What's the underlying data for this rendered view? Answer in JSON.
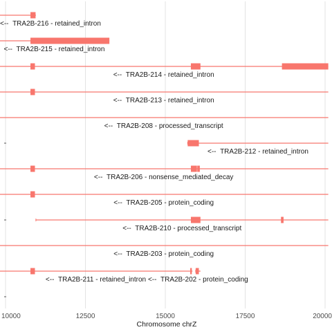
{
  "chart_data": {
    "type": "gene_track",
    "title": "",
    "xlabel": "Chromosome chrZ",
    "ylabel": "",
    "xlim": [
      10000,
      20000
    ],
    "x_ticks": [
      10000,
      12500,
      15000,
      17500,
      20000
    ],
    "x_tick_labels": [
      "10000",
      "12500",
      "15000",
      "17500",
      "20000"
    ],
    "grid": true,
    "color": "#F8766D",
    "transcripts": [
      {
        "label": "TRA2B-216 - retained_intron",
        "strand": "-",
        "row": 0,
        "line": [
          9800,
          10950
        ],
        "exons": [
          [
            10780,
            10940
          ]
        ]
      },
      {
        "label": "TRA2B-215 - retained_intron",
        "strand": "-",
        "row": 1,
        "line": [
          9800,
          13250
        ],
        "exons": [
          [
            10780,
            13250
          ]
        ]
      },
      {
        "label": "TRA2B-214 - retained_intron",
        "strand": "-",
        "row": 2,
        "line": [
          9800,
          20100
        ],
        "exons": [
          [
            10780,
            10920
          ],
          [
            15800,
            16100
          ],
          [
            18650,
            20100
          ]
        ]
      },
      {
        "label": "TRA2B-213 - retained_intron",
        "strand": "-",
        "row": 3,
        "line": [
          9800,
          20100
        ],
        "exons": [
          [
            10780,
            10920
          ]
        ]
      },
      {
        "label": "TRA2B-208 - processed_transcript",
        "strand": "-",
        "row": 4,
        "line": [
          9800,
          20100
        ],
        "exons": []
      },
      {
        "label": "TRA2B-212 - retained_intron",
        "strand": "-",
        "row": 5,
        "line": [
          15700,
          20100
        ],
        "exons": [
          [
            15700,
            16050
          ]
        ]
      },
      {
        "label": "TRA2B-206 - nonsense_mediated_decay",
        "strand": "-",
        "row": 6,
        "line": [
          9800,
          20100
        ],
        "exons": [
          [
            10780,
            10920
          ],
          [
            15800,
            15990
          ],
          [
            16000,
            16080
          ]
        ]
      },
      {
        "label": "TRA2B-205 - protein_coding",
        "strand": "-",
        "row": 7,
        "line": [
          9800,
          20100
        ],
        "exons": [
          [
            10780,
            10920
          ]
        ]
      },
      {
        "label": "TRA2B-210 - processed_transcript",
        "strand": "-",
        "row": 8,
        "line": [
          10950,
          20100
        ],
        "exons": [
          [
            15800,
            16100
          ],
          [
            18620,
            18700
          ]
        ]
      },
      {
        "label": "TRA2B-203 - protein_coding",
        "strand": "-",
        "row": 9,
        "line": [
          9800,
          20100
        ],
        "exons": []
      },
      {
        "label": "TRA2B-211 - retained_intron",
        "strand": "-",
        "row": 10,
        "line": [
          9800,
          15850
        ],
        "exons": [
          [
            10780,
            10920
          ],
          [
            15780,
            15830
          ]
        ]
      },
      {
        "label": "TRA2B-202 - protein_coding",
        "strand": "-",
        "row": 10,
        "line": [
          15950,
          16100
        ],
        "exons": [
          [
            15950,
            16050
          ]
        ]
      }
    ]
  }
}
